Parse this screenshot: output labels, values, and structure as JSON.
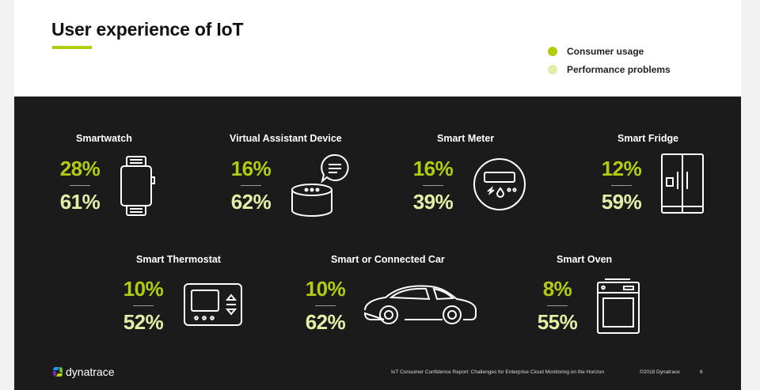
{
  "header": {
    "title": "User experience of IoT"
  },
  "legend": [
    {
      "label": "Consumer usage",
      "color": "#b4cc10"
    },
    {
      "label": "Performance problems",
      "color": "#e2efa6"
    }
  ],
  "devices": [
    {
      "name": "Smartwatch",
      "usage": "28%",
      "problems": "61%",
      "icon": "smartwatch-icon"
    },
    {
      "name": "Virtual Assistant Device",
      "usage": "16%",
      "problems": "62%",
      "icon": "smart-speaker-icon"
    },
    {
      "name": "Smart Meter",
      "usage": "16%",
      "problems": "39%",
      "icon": "smart-meter-icon"
    },
    {
      "name": "Smart Fridge",
      "usage": "12%",
      "problems": "59%",
      "icon": "fridge-icon"
    },
    {
      "name": "Smart Thermostat",
      "usage": "10%",
      "problems": "52%",
      "icon": "thermostat-icon"
    },
    {
      "name": "Smart or Connected Car",
      "usage": "10%",
      "problems": "62%",
      "icon": "car-icon"
    },
    {
      "name": "Smart Oven",
      "usage": "8%",
      "problems": "55%",
      "icon": "oven-icon"
    }
  ],
  "footer": {
    "logo_text": "dynatrace",
    "report": "IoT Consumer Confidence Report: Challenges for Enterprise Cloud Monitoring on the Horizon",
    "copyright": "©2018 Dynatrace",
    "page_number": "6"
  }
}
